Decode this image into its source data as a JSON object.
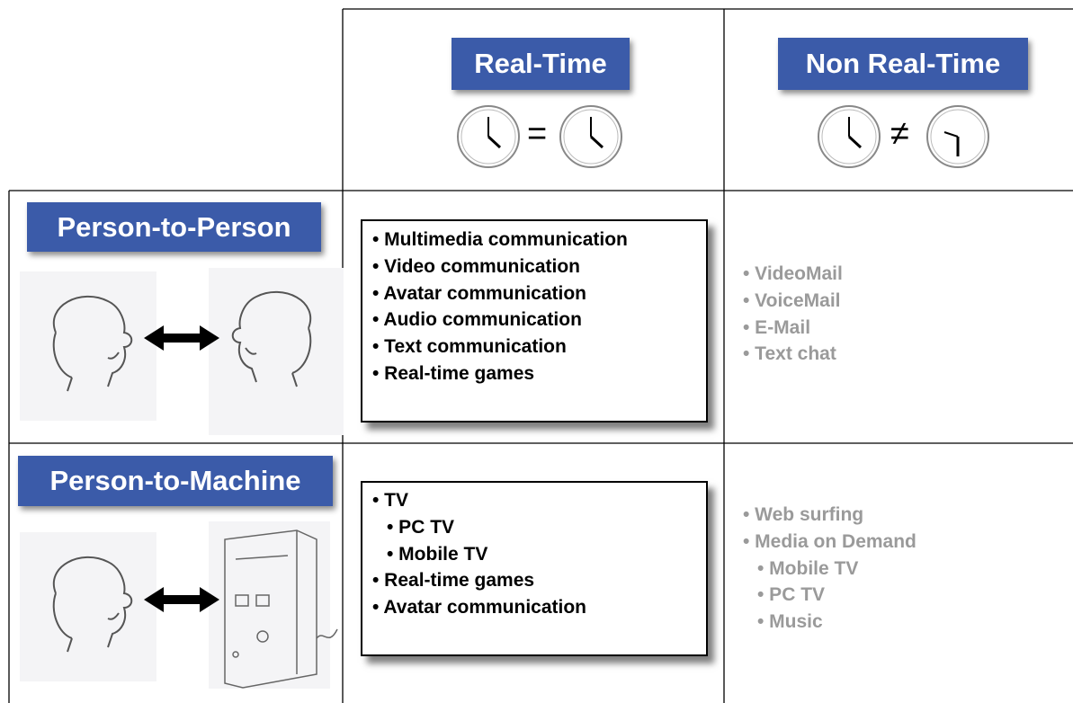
{
  "columns": [
    {
      "title": "Real-Time",
      "relation": "="
    },
    {
      "title": "Non Real-Time",
      "relation": "≠"
    }
  ],
  "rows": [
    {
      "title": "Person-to-Person",
      "real_time": [
        {
          "text": "• Multimedia communication"
        },
        {
          "text": "• Video communication"
        },
        {
          "text": "• Avatar communication"
        },
        {
          "text": "• Audio communication"
        },
        {
          "text": "• Text communication"
        },
        {
          "text": "• Real-time games"
        }
      ],
      "non_real_time": [
        {
          "text": "• VideoMail"
        },
        {
          "text": "• VoiceMail"
        },
        {
          "text": "• E-Mail"
        },
        {
          "text": "• Text chat"
        }
      ]
    },
    {
      "title": "Person-to-Machine",
      "real_time": [
        {
          "text": "• TV",
          "children": [
            "• PC TV",
            "• Mobile TV"
          ]
        },
        {
          "text": "• Real-time games"
        },
        {
          "text": "• Avatar communication"
        }
      ],
      "non_real_time": [
        {
          "text": "• Web surfing"
        },
        {
          "text": "• Media on Demand",
          "children": [
            "• Mobile TV",
            "• PC TV",
            "• Music"
          ]
        }
      ]
    }
  ]
}
